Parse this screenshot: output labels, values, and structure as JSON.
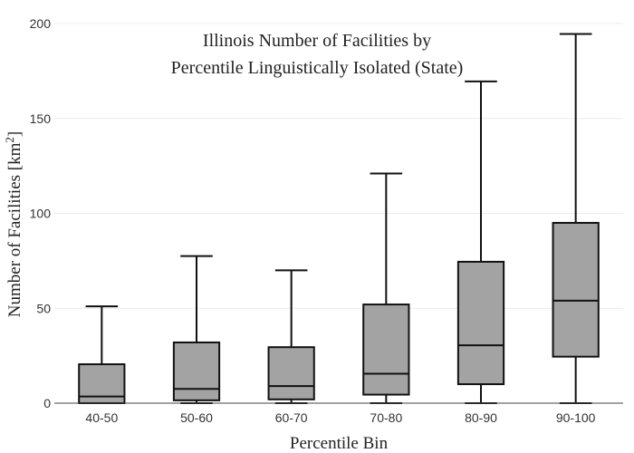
{
  "chart_data": {
    "type": "box",
    "title_lines": [
      "Illinois Number of Facilities by",
      "Percentile Linguistically Isolated (State)"
    ],
    "xlabel": "Percentile Bin",
    "ylabel": {
      "prefix": "Number of Facilities  [km",
      "superscript": "2",
      "suffix": "]"
    },
    "ylim": [
      0,
      200
    ],
    "yticks": [
      0,
      50,
      100,
      150,
      200
    ],
    "grid": true,
    "categories": [
      "40-50",
      "50-60",
      "60-70",
      "70-80",
      "80-90",
      "90-100"
    ],
    "boxes": [
      {
        "category": "40-50",
        "min": 0,
        "q1": 0,
        "median": 3.5,
        "q3": 20.5,
        "max": 51
      },
      {
        "category": "50-60",
        "min": 0,
        "q1": 1.5,
        "median": 7.5,
        "q3": 32,
        "max": 77.5
      },
      {
        "category": "60-70",
        "min": 0,
        "q1": 2,
        "median": 9,
        "q3": 29.5,
        "max": 70
      },
      {
        "category": "70-80",
        "min": 0,
        "q1": 4.5,
        "median": 15.5,
        "q3": 52,
        "max": 121
      },
      {
        "category": "80-90",
        "min": 0,
        "q1": 10,
        "median": 30.5,
        "q3": 74.5,
        "max": 169.5
      },
      {
        "category": "90-100",
        "min": 0,
        "q1": 24.5,
        "median": 54,
        "q3": 95,
        "max": 194.5
      }
    ],
    "box_color": "#a3a3a3",
    "line_color": "#111111"
  }
}
